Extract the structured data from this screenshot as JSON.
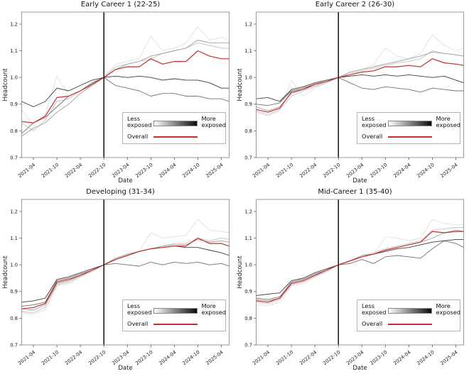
{
  "figure": {
    "legend": {
      "less_label": "Less\nexposed",
      "more_label": "More\nexposed",
      "overall_label": "Overall"
    },
    "colors": {
      "background": "#ffffff",
      "overall_line": "#c52f2f",
      "event_line": "#000000",
      "spine": "#8f8f8f",
      "tick": "#555555",
      "gradient_from": "#ffffff",
      "gradient_to": "#0a0a0a",
      "quintile_shades": [
        "#e0e0e0",
        "#c4c4c4",
        "#9f9f9f",
        "#737373",
        "#3b3b3b"
      ]
    }
  },
  "chart_data": [
    {
      "type": "line",
      "title": "Early Career 1 (22-25)",
      "xlabel": "Date",
      "ylabel": "Headcount",
      "x_dates": [
        "2021-01",
        "2021-04",
        "2021-07",
        "2021-10",
        "2022-01",
        "2022-04",
        "2022-07",
        "2022-10",
        "2023-01",
        "2023-04",
        "2023-07",
        "2023-10",
        "2024-01",
        "2024-04",
        "2024-07",
        "2024-10",
        "2025-01",
        "2025-04",
        "2025-06"
      ],
      "x_months": [
        0,
        3,
        6,
        9,
        12,
        15,
        18,
        21,
        24,
        27,
        30,
        33,
        36,
        39,
        42,
        45,
        48,
        51,
        53
      ],
      "x_tick_labels": [
        "2021-04",
        "2021-10",
        "2022-04",
        "2022-10",
        "2023-04",
        "2023-10",
        "2024-04",
        "2024-10",
        "2025-04"
      ],
      "x_tick_months": [
        3,
        9,
        15,
        21,
        27,
        33,
        39,
        45,
        51
      ],
      "y_ticks": [
        0.7,
        0.8,
        0.9,
        1.0,
        1.1,
        1.2
      ],
      "ylim": [
        0.7,
        1.245
      ],
      "xlim_months": [
        0,
        53
      ],
      "grid": false,
      "legend_position": "lower right",
      "event_line": {
        "month": 21,
        "date": "2022-10"
      },
      "series": [
        {
          "name": "quintile 1 (least exposed)",
          "color": "#e0e0e0",
          "values": [
            0.88,
            0.82,
            0.86,
            1.005,
            0.93,
            0.95,
            0.98,
            1.0,
            1.05,
            1.06,
            1.07,
            1.155,
            1.1,
            1.11,
            1.13,
            1.19,
            1.14,
            1.15,
            1.14
          ]
        },
        {
          "name": "quintile 2",
          "color": "#c4c4c4",
          "values": [
            0.83,
            0.8,
            0.84,
            0.91,
            0.92,
            0.95,
            0.97,
            1.0,
            1.04,
            1.05,
            1.06,
            1.07,
            1.09,
            1.1,
            1.11,
            1.13,
            1.12,
            1.11,
            1.11
          ]
        },
        {
          "name": "quintile 3",
          "color": "#9f9f9f",
          "values": [
            0.78,
            0.81,
            0.83,
            0.87,
            0.9,
            0.94,
            0.97,
            1.0,
            1.03,
            1.05,
            1.06,
            1.08,
            1.09,
            1.1,
            1.11,
            1.14,
            1.13,
            1.13,
            1.13
          ]
        },
        {
          "name": "quintile 4",
          "color": "#737373",
          "values": [
            0.79,
            0.83,
            0.85,
            0.89,
            0.93,
            0.95,
            0.98,
            1.0,
            0.97,
            0.96,
            0.95,
            0.93,
            0.94,
            0.94,
            0.93,
            0.93,
            0.92,
            0.92,
            0.91
          ]
        },
        {
          "name": "quintile 5 (most exposed)",
          "color": "#3b3b3b",
          "values": [
            0.91,
            0.89,
            0.91,
            0.96,
            0.95,
            0.97,
            0.99,
            1.0,
            1.005,
            1.0,
            1.005,
            1.0,
            0.99,
            0.995,
            0.99,
            0.99,
            0.98,
            0.96,
            0.96
          ]
        },
        {
          "name": "Overall",
          "color": "#c52f2f",
          "values": [
            0.835,
            0.83,
            0.855,
            0.925,
            0.93,
            0.95,
            0.975,
            1.0,
            1.03,
            1.04,
            1.04,
            1.07,
            1.05,
            1.06,
            1.06,
            1.1,
            1.08,
            1.07,
            1.07
          ]
        }
      ]
    },
    {
      "type": "line",
      "title": "Early Career 2 (26-30)",
      "xlabel": "Date",
      "ylabel": "Headcount",
      "x_dates": [
        "2021-01",
        "2021-04",
        "2021-07",
        "2021-10",
        "2022-01",
        "2022-04",
        "2022-07",
        "2022-10",
        "2023-01",
        "2023-04",
        "2023-07",
        "2023-10",
        "2024-01",
        "2024-04",
        "2024-07",
        "2024-10",
        "2025-01",
        "2025-04",
        "2025-06"
      ],
      "x_months": [
        0,
        3,
        6,
        9,
        12,
        15,
        18,
        21,
        24,
        27,
        30,
        33,
        36,
        39,
        42,
        45,
        48,
        51,
        53
      ],
      "x_tick_labels": [
        "2021-04",
        "2021-10",
        "2022-04",
        "2022-10",
        "2023-04",
        "2023-10",
        "2024-04",
        "2024-10",
        "2025-04"
      ],
      "x_tick_months": [
        3,
        9,
        15,
        21,
        27,
        33,
        39,
        45,
        51
      ],
      "y_ticks": [
        0.7,
        0.8,
        0.9,
        1.0,
        1.1,
        1.2
      ],
      "ylim": [
        0.7,
        1.245
      ],
      "xlim_months": [
        0,
        53
      ],
      "grid": false,
      "legend_position": "lower right",
      "event_line": {
        "month": 21,
        "date": "2022-10"
      },
      "series": [
        {
          "name": "quintile 1 (least exposed)",
          "color": "#e0e0e0",
          "values": [
            0.87,
            0.855,
            0.875,
            0.99,
            0.93,
            0.96,
            0.98,
            1.0,
            1.02,
            1.03,
            1.05,
            1.11,
            1.08,
            1.07,
            1.09,
            1.16,
            1.12,
            1.1,
            1.11
          ]
        },
        {
          "name": "quintile 2",
          "color": "#c4c4c4",
          "values": [
            0.875,
            0.86,
            0.88,
            0.93,
            0.95,
            0.965,
            0.98,
            1.0,
            1.015,
            1.025,
            1.035,
            1.045,
            1.055,
            1.06,
            1.07,
            1.1,
            1.09,
            1.085,
            1.08
          ]
        },
        {
          "name": "quintile 3",
          "color": "#9f9f9f",
          "values": [
            0.89,
            0.875,
            0.89,
            0.94,
            0.955,
            0.97,
            0.985,
            1.0,
            1.02,
            1.03,
            1.04,
            1.05,
            1.06,
            1.07,
            1.08,
            1.095,
            1.09,
            1.085,
            1.08
          ]
        },
        {
          "name": "quintile 4",
          "color": "#737373",
          "values": [
            0.9,
            0.895,
            0.905,
            0.95,
            0.96,
            0.975,
            0.985,
            1.0,
            0.98,
            0.96,
            0.955,
            0.965,
            0.96,
            0.955,
            0.945,
            0.96,
            0.955,
            0.95,
            0.95
          ]
        },
        {
          "name": "quintile 5 (most exposed)",
          "color": "#3b3b3b",
          "values": [
            0.92,
            0.925,
            0.91,
            0.955,
            0.965,
            0.98,
            0.99,
            1.0,
            1.005,
            1.01,
            1.005,
            1.01,
            1.005,
            1.01,
            1.005,
            1.0,
            1.005,
            0.99,
            0.98
          ]
        },
        {
          "name": "Overall",
          "color": "#c52f2f",
          "values": [
            0.88,
            0.87,
            0.885,
            0.945,
            0.955,
            0.975,
            0.985,
            1.0,
            1.01,
            1.02,
            1.025,
            1.04,
            1.04,
            1.045,
            1.04,
            1.07,
            1.055,
            1.05,
            1.045
          ]
        }
      ]
    },
    {
      "type": "line",
      "title": "Developing (31-34)",
      "xlabel": "Date",
      "ylabel": "Headcount",
      "x_dates": [
        "2021-01",
        "2021-04",
        "2021-07",
        "2021-10",
        "2022-01",
        "2022-04",
        "2022-07",
        "2022-10",
        "2023-01",
        "2023-04",
        "2023-07",
        "2023-10",
        "2024-01",
        "2024-04",
        "2024-07",
        "2024-10",
        "2025-01",
        "2025-04",
        "2025-06"
      ],
      "x_months": [
        0,
        3,
        6,
        9,
        12,
        15,
        18,
        21,
        24,
        27,
        30,
        33,
        36,
        39,
        42,
        45,
        48,
        51,
        53
      ],
      "x_tick_labels": [
        "2021-04",
        "2021-10",
        "2022-04",
        "2022-10",
        "2023-04",
        "2023-10",
        "2024-04",
        "2024-10",
        "2025-04"
      ],
      "x_tick_months": [
        3,
        9,
        15,
        21,
        27,
        33,
        39,
        45,
        51
      ],
      "y_ticks": [
        0.7,
        0.8,
        0.9,
        1.0,
        1.1,
        1.2
      ],
      "ylim": [
        0.7,
        1.245
      ],
      "xlim_months": [
        0,
        53
      ],
      "grid": false,
      "legend_position": "lower right",
      "event_line": {
        "month": 21,
        "date": "2022-10"
      },
      "series": [
        {
          "name": "quintile 1 (least exposed)",
          "color": "#e0e0e0",
          "values": [
            0.82,
            0.815,
            0.83,
            0.92,
            0.93,
            0.955,
            0.98,
            1.0,
            1.02,
            1.04,
            1.05,
            1.12,
            1.1,
            1.105,
            1.11,
            1.17,
            1.13,
            1.125,
            1.12
          ]
        },
        {
          "name": "quintile 2",
          "color": "#c4c4c4",
          "values": [
            0.825,
            0.82,
            0.84,
            0.925,
            0.935,
            0.955,
            0.975,
            1.0,
            1.02,
            1.035,
            1.05,
            1.06,
            1.07,
            1.08,
            1.08,
            1.1,
            1.09,
            1.1,
            1.095
          ]
        },
        {
          "name": "quintile 3",
          "color": "#9f9f9f",
          "values": [
            0.835,
            0.83,
            0.85,
            0.93,
            0.94,
            0.96,
            0.98,
            1.0,
            1.025,
            1.04,
            1.05,
            1.06,
            1.07,
            1.075,
            1.075,
            1.095,
            1.085,
            1.09,
            1.085
          ]
        },
        {
          "name": "quintile 4",
          "color": "#737373",
          "values": [
            0.845,
            0.85,
            0.86,
            0.94,
            0.95,
            0.965,
            0.98,
            1.0,
            1.005,
            1.0,
            0.995,
            1.01,
            1.0,
            1.01,
            1.005,
            1.01,
            1.0,
            1.005,
            0.995
          ]
        },
        {
          "name": "quintile 5 (most exposed)",
          "color": "#3b3b3b",
          "values": [
            0.86,
            0.865,
            0.875,
            0.945,
            0.955,
            0.97,
            0.985,
            1.0,
            1.02,
            1.035,
            1.05,
            1.06,
            1.065,
            1.07,
            1.065,
            1.065,
            1.055,
            1.045,
            1.035
          ]
        },
        {
          "name": "Overall",
          "color": "#c52f2f",
          "values": [
            0.835,
            0.84,
            0.855,
            0.935,
            0.945,
            0.96,
            0.98,
            1.0,
            1.02,
            1.035,
            1.05,
            1.06,
            1.065,
            1.07,
            1.07,
            1.1,
            1.08,
            1.08,
            1.07
          ]
        }
      ]
    },
    {
      "type": "line",
      "title": "Mid-Career 1 (35-40)",
      "xlabel": "Date",
      "ylabel": "Headcount",
      "x_dates": [
        "2021-01",
        "2021-04",
        "2021-07",
        "2021-10",
        "2022-01",
        "2022-04",
        "2022-07",
        "2022-10",
        "2023-01",
        "2023-04",
        "2023-07",
        "2023-10",
        "2024-01",
        "2024-04",
        "2024-07",
        "2024-10",
        "2025-01",
        "2025-04",
        "2025-06"
      ],
      "x_months": [
        0,
        3,
        6,
        9,
        12,
        15,
        18,
        21,
        24,
        27,
        30,
        33,
        36,
        39,
        42,
        45,
        48,
        51,
        53
      ],
      "x_tick_labels": [
        "2021-04",
        "2021-10",
        "2022-04",
        "2022-10",
        "2023-04",
        "2023-10",
        "2024-04",
        "2024-10",
        "2025-04"
      ],
      "x_tick_months": [
        3,
        9,
        15,
        21,
        27,
        33,
        39,
        45,
        51
      ],
      "y_ticks": [
        0.7,
        0.8,
        0.9,
        1.0,
        1.1,
        1.2
      ],
      "ylim": [
        0.7,
        1.245
      ],
      "xlim_months": [
        0,
        53
      ],
      "grid": false,
      "legend_position": "lower right",
      "event_line": {
        "month": 21,
        "date": "2022-10"
      },
      "series": [
        {
          "name": "quintile 1 (least exposed)",
          "color": "#e0e0e0",
          "values": [
            0.85,
            0.848,
            0.86,
            0.92,
            0.93,
            0.955,
            0.975,
            1.0,
            1.01,
            1.03,
            1.04,
            1.105,
            1.1,
            1.09,
            1.1,
            1.17,
            1.155,
            1.15,
            1.15
          ]
        },
        {
          "name": "quintile 2",
          "color": "#c4c4c4",
          "values": [
            0.86,
            0.855,
            0.87,
            0.925,
            0.935,
            0.955,
            0.975,
            1.0,
            1.015,
            1.035,
            1.045,
            1.06,
            1.07,
            1.08,
            1.09,
            1.13,
            1.135,
            1.14,
            1.14
          ]
        },
        {
          "name": "quintile 3",
          "color": "#9f9f9f",
          "values": [
            0.87,
            0.865,
            0.875,
            0.93,
            0.94,
            0.96,
            0.98,
            1.0,
            1.015,
            1.035,
            1.04,
            1.055,
            1.065,
            1.075,
            1.085,
            1.1,
            1.12,
            1.13,
            1.125
          ]
        },
        {
          "name": "quintile 4",
          "color": "#737373",
          "values": [
            0.875,
            0.87,
            0.88,
            0.935,
            0.945,
            0.965,
            0.98,
            1.0,
            1.005,
            1.02,
            1.005,
            1.03,
            1.035,
            1.03,
            1.025,
            1.06,
            1.09,
            1.08,
            1.065
          ]
        },
        {
          "name": "quintile 5 (most exposed)",
          "color": "#3b3b3b",
          "values": [
            0.885,
            0.89,
            0.895,
            0.94,
            0.95,
            0.97,
            0.985,
            1.0,
            1.015,
            1.03,
            1.04,
            1.05,
            1.06,
            1.065,
            1.075,
            1.085,
            1.09,
            1.095,
            1.095
          ]
        },
        {
          "name": "Overall",
          "color": "#c52f2f",
          "values": [
            0.865,
            0.86,
            0.875,
            0.93,
            0.94,
            0.96,
            0.98,
            1.0,
            1.015,
            1.03,
            1.04,
            1.055,
            1.065,
            1.075,
            1.085,
            1.125,
            1.12,
            1.125,
            1.125
          ]
        }
      ]
    }
  ]
}
